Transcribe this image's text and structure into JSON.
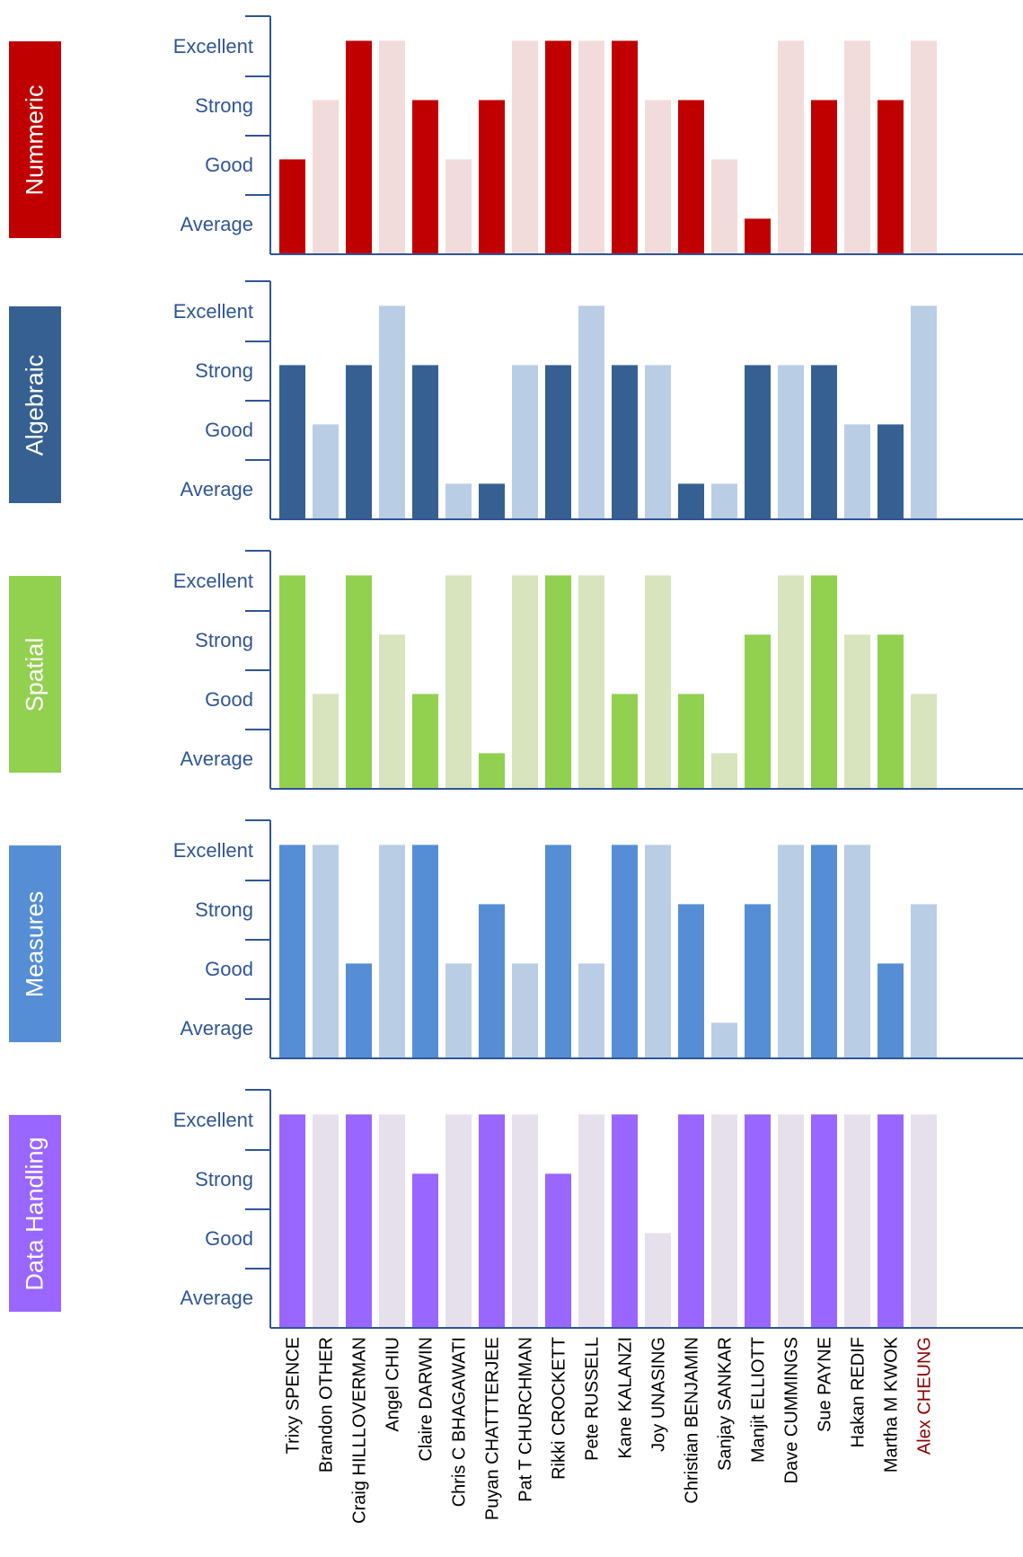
{
  "chart_data": {
    "type": "bar",
    "levels": [
      "Average",
      "Good",
      "Strong",
      "Excellent"
    ],
    "categories": [
      "Trixy SPENCE",
      "Brandon OTHER",
      "Craig HILLLOVERMAN",
      "Angel CHIU",
      "Claire DARWIN",
      "Chris C BHAGAWATI",
      "Puyan CHATTTERJEE",
      "Pat T CHURCHMAN",
      "Rikki CROCKETT",
      "Pete RUSSELL",
      "Kane KALANZI",
      "Joy UNASING",
      "Christian BENJAMIN",
      "Sanjay SANKAR",
      "Manjit ELLIOTT",
      "Dave CUMMINGS",
      "Sue PAYNE",
      "Hakan REDIF",
      "Martha M KWOK",
      "Alex CHEUNG"
    ],
    "highlighted_category": "Alex CHEUNG",
    "highlight_color": "#8b0000",
    "ylim": [
      0,
      3.55
    ],
    "series": [
      {
        "name": "Nummeric",
        "dark": "#c00000",
        "light": "#f2dcdb",
        "values": [
          1.6,
          2.6,
          3.6,
          3.6,
          2.6,
          1.6,
          2.6,
          3.6,
          3.6,
          3.6,
          3.6,
          2.6,
          2.6,
          1.6,
          0.6,
          3.6,
          2.6,
          3.6,
          2.6,
          3.6
        ]
      },
      {
        "name": "Algebraic",
        "dark": "#366092",
        "light": "#b9cde5",
        "values": [
          2.6,
          1.6,
          2.6,
          3.6,
          2.6,
          0.6,
          0.6,
          2.6,
          2.6,
          3.6,
          2.6,
          2.6,
          0.6,
          0.6,
          2.6,
          2.6,
          2.6,
          1.6,
          1.6,
          3.6
        ]
      },
      {
        "name": "Spatial",
        "dark": "#92d050",
        "light": "#d7e4bd",
        "values": [
          3.6,
          1.6,
          3.6,
          2.6,
          1.6,
          3.6,
          0.6,
          3.6,
          3.6,
          3.6,
          1.6,
          3.6,
          1.6,
          0.6,
          2.6,
          3.6,
          3.6,
          2.6,
          2.6,
          1.6
        ]
      },
      {
        "name": "Measures",
        "dark": "#558ed5",
        "light": "#b9cde5",
        "values": [
          3.6,
          3.6,
          1.6,
          3.6,
          3.6,
          1.6,
          2.6,
          1.6,
          3.6,
          1.6,
          3.6,
          3.6,
          2.6,
          0.6,
          2.6,
          3.6,
          3.6,
          3.6,
          1.6,
          2.6
        ]
      },
      {
        "name": "Data Handling",
        "dark": "#9966ff",
        "light": "#e6e0ec",
        "values": [
          3.6,
          3.6,
          3.6,
          3.6,
          2.6,
          3.6,
          3.6,
          3.6,
          2.6,
          3.6,
          3.6,
          1.6,
          3.6,
          3.6,
          3.6,
          3.6,
          3.6,
          3.6,
          3.6,
          3.6
        ]
      }
    ]
  }
}
